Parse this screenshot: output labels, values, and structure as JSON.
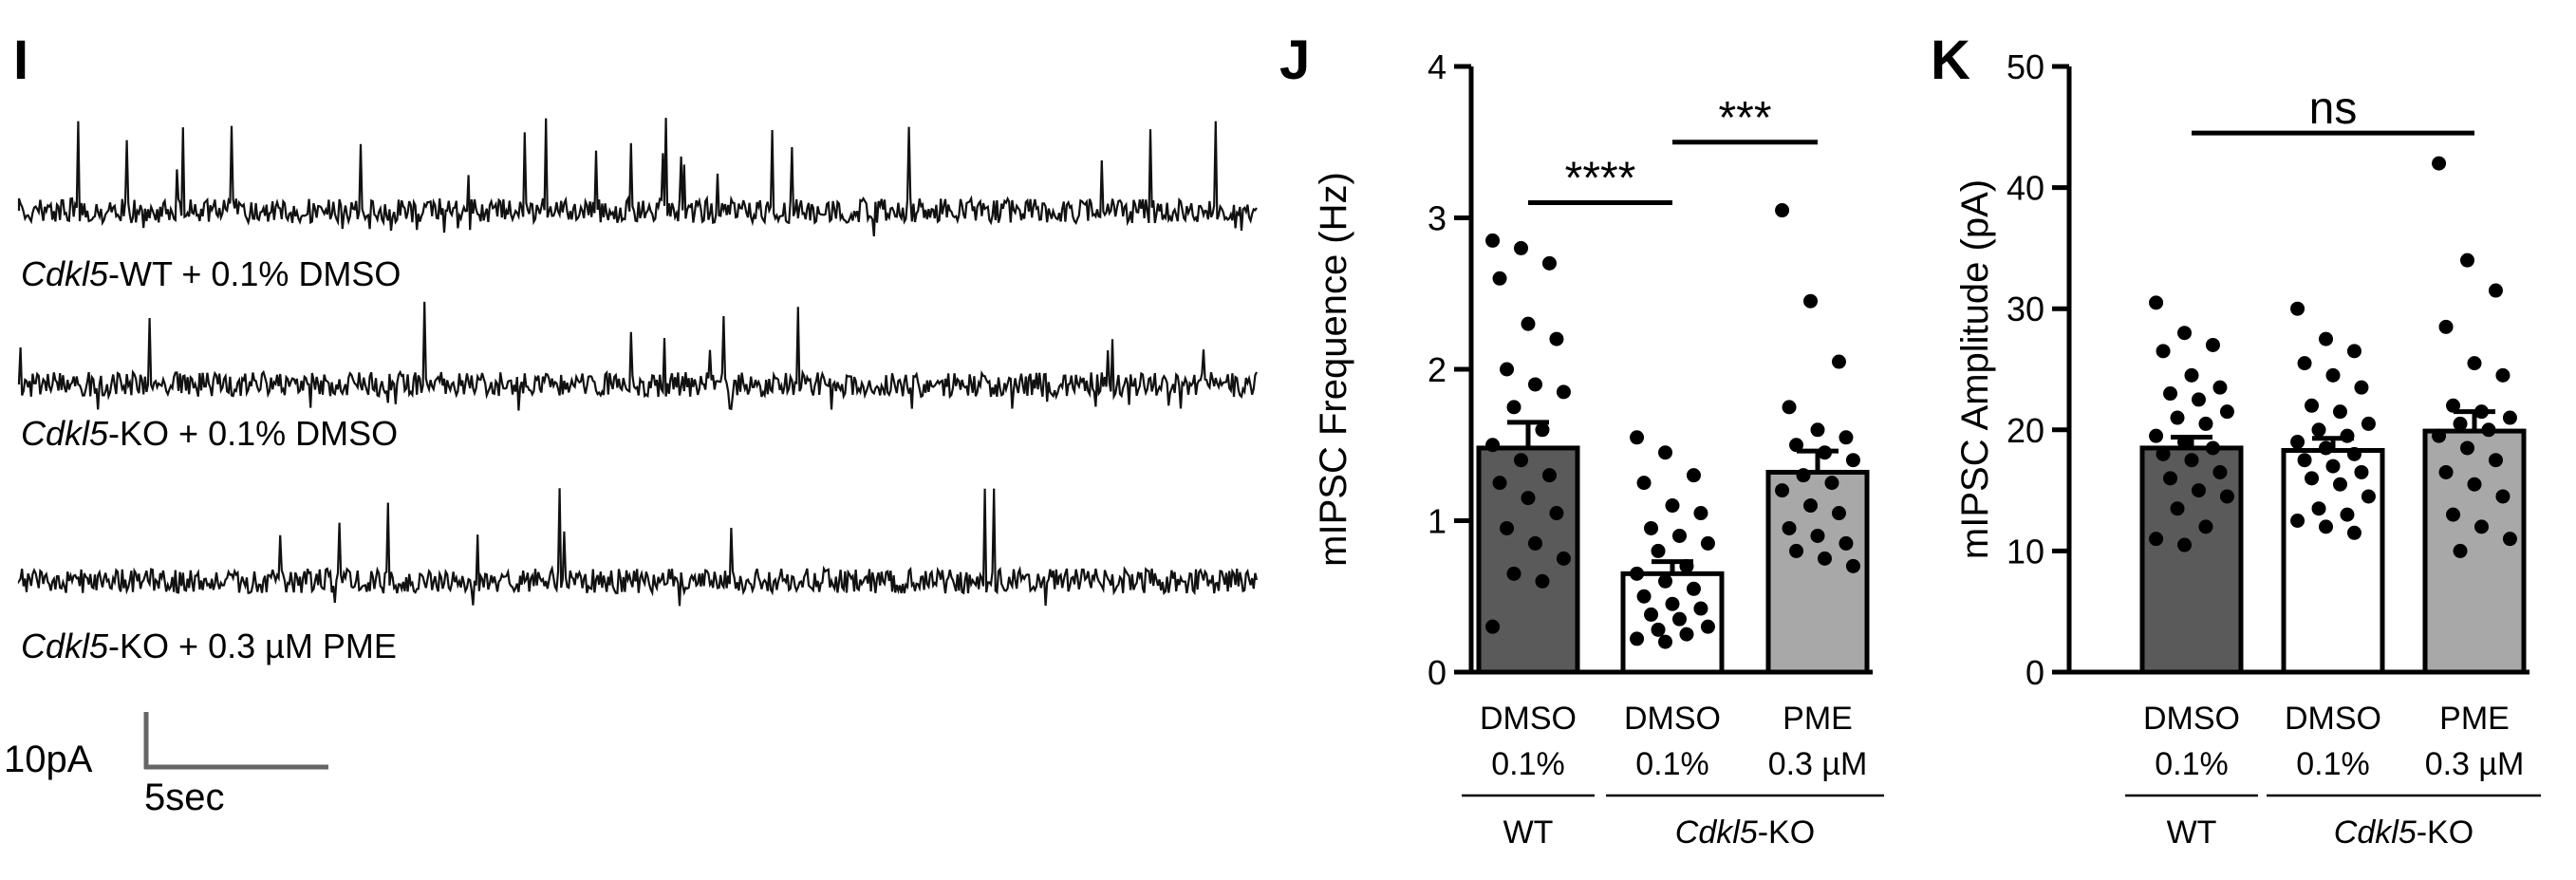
{
  "panel_i": {
    "letter": "I",
    "traces": [
      {
        "gene": "Cdkl5",
        "rest": "-WT + 0.1% DMSO"
      },
      {
        "gene": "Cdkl5",
        "rest": "-KO + 0.1% DMSO"
      },
      {
        "gene": "Cdkl5",
        "rest": "-KO + 0.3 µM PME"
      }
    ],
    "scale_bar": {
      "amplitude_label": "10pA",
      "time_label": "5sec"
    }
  },
  "chart_data": [
    {
      "letter": "J",
      "type": "bar",
      "ylabel": "mIPSC Frequence (Hz)",
      "ylim": [
        0,
        4
      ],
      "yticks": [
        0,
        1,
        2,
        3,
        4
      ],
      "categories": [
        {
          "line1": "DMSO",
          "line2": "0.1%"
        },
        {
          "line1": "DMSO",
          "line2": "0.1%"
        },
        {
          "line1": "PME",
          "line2": "0.3 µM"
        }
      ],
      "groups": [
        {
          "label": "WT",
          "italic_part": "",
          "from": 0,
          "to": 0
        },
        {
          "label": "-KO",
          "italic_part": "Cdkl5",
          "from": 1,
          "to": 2
        }
      ],
      "bar_colors": [
        "#5a5a5a",
        "#ffffff",
        "#a8a8a8"
      ],
      "values": [
        1.48,
        0.65,
        1.32
      ],
      "sem": [
        0.17,
        0.08,
        0.14
      ],
      "points": [
        [
          2.85,
          2.8,
          2.7,
          2.6,
          2.3,
          2.2,
          2.0,
          1.9,
          1.85,
          1.75,
          1.6,
          1.5,
          1.4,
          1.3,
          1.25,
          1.15,
          1.05,
          0.95,
          0.85,
          0.75,
          0.65,
          0.6,
          0.3
        ],
        [
          1.55,
          1.45,
          1.3,
          1.25,
          1.1,
          1.05,
          0.95,
          0.9,
          0.85,
          0.8,
          0.7,
          0.65,
          0.6,
          0.55,
          0.5,
          0.45,
          0.42,
          0.38,
          0.35,
          0.3,
          0.28,
          0.25,
          0.22,
          0.2
        ],
        [
          3.05,
          2.45,
          2.05,
          1.75,
          1.6,
          1.55,
          1.5,
          1.45,
          1.4,
          1.3,
          1.25,
          1.2,
          1.1,
          1.05,
          0.95,
          0.9,
          0.85,
          0.8,
          0.75,
          0.7
        ]
      ],
      "significance": [
        {
          "from": 0,
          "to": 1,
          "y": 3.1,
          "label": "****"
        },
        {
          "from": 1,
          "to": 2,
          "y": 3.5,
          "label": "***"
        }
      ]
    },
    {
      "letter": "K",
      "type": "bar",
      "ylabel": "mIPSC Amplitude (pA)",
      "ylim": [
        0,
        50
      ],
      "yticks": [
        0,
        10,
        20,
        30,
        40,
        50
      ],
      "categories": [
        {
          "line1": "DMSO",
          "line2": "0.1%"
        },
        {
          "line1": "DMSO",
          "line2": "0.1%"
        },
        {
          "line1": "PME",
          "line2": "0.3 µM"
        }
      ],
      "groups": [
        {
          "label": "WT",
          "italic_part": "",
          "from": 0,
          "to": 0
        },
        {
          "label": "-KO",
          "italic_part": "Cdkl5",
          "from": 1,
          "to": 2
        }
      ],
      "bar_colors": [
        "#5a5a5a",
        "#ffffff",
        "#a8a8a8"
      ],
      "values": [
        18.5,
        18.3,
        19.9
      ],
      "sem": [
        0.9,
        1.0,
        1.6
      ],
      "points": [
        [
          30.5,
          28.0,
          27.0,
          26.5,
          24.5,
          23.5,
          23.0,
          22.5,
          21.5,
          21.0,
          20.5,
          19.5,
          19.0,
          18.5,
          18.0,
          17.5,
          16.5,
          16.0,
          15.0,
          14.5,
          13.5,
          12.0,
          11.0,
          10.5
        ],
        [
          30.0,
          27.5,
          26.5,
          25.5,
          24.5,
          23.5,
          22.0,
          21.5,
          20.5,
          20.0,
          19.5,
          19.0,
          18.5,
          18.0,
          17.5,
          17.0,
          16.5,
          16.0,
          15.5,
          14.5,
          13.5,
          13.0,
          12.5,
          12.0,
          11.5
        ],
        [
          42.0,
          34.0,
          31.5,
          28.5,
          25.5,
          24.5,
          22.0,
          21.5,
          21.0,
          20.5,
          20.0,
          19.5,
          18.5,
          17.5,
          16.5,
          15.5,
          14.5,
          13.0,
          12.0,
          11.0,
          10.0
        ]
      ],
      "significance": [
        {
          "from": 0,
          "to": 2,
          "y": 44.5,
          "label": "ns"
        }
      ]
    }
  ]
}
